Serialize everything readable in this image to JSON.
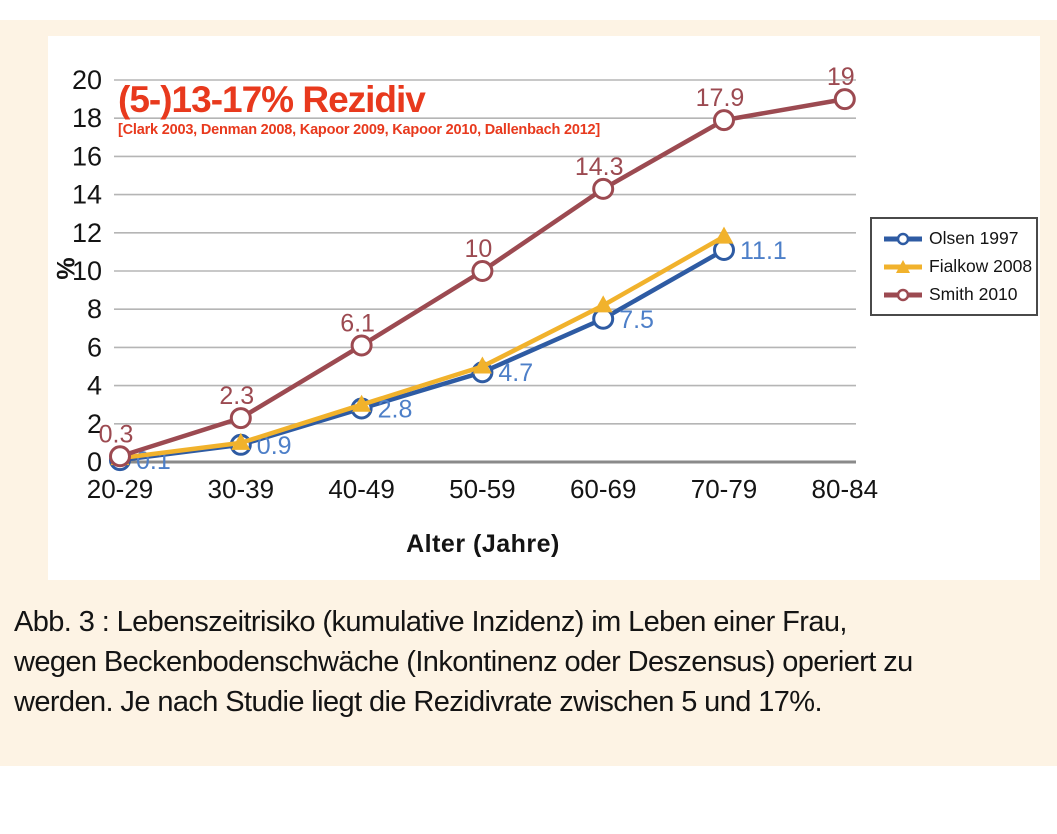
{
  "figure": {
    "annotation_title": "(5-)13-17% Rezidiv",
    "annotation_citation": "[Clark 2003, Denman 2008, Kapoor 2009, Kapoor 2010, Dallenbach 2012]",
    "annotation_color": "#e8391d",
    "background_color": "#fdf3e4",
    "panel_color": "#ffffff"
  },
  "chart_data": {
    "type": "line",
    "title": "",
    "categories": [
      "20-29",
      "30-39",
      "40-49",
      "50-59",
      "60-69",
      "70-79",
      "80-84"
    ],
    "series": [
      {
        "name": "Olsen 1997",
        "color": "#2e5ba3",
        "marker": "circle",
        "values": [
          0.1,
          0.9,
          2.8,
          4.7,
          7.5,
          11.1,
          null
        ],
        "labels": [
          "0.1",
          "0.9",
          "2.8",
          "4.7",
          "7.5",
          "11.1",
          null
        ],
        "label_color": "#4d7fc8",
        "label_side": "right"
      },
      {
        "name": "Fialkow 2008",
        "color": "#f1b22c",
        "marker": "triangle",
        "values": [
          0.2,
          1.0,
          3.0,
          5.0,
          8.2,
          11.8,
          null
        ],
        "labels": [
          null,
          null,
          null,
          null,
          null,
          null,
          null
        ],
        "label_color": "#f1b22c",
        "label_side": "right"
      },
      {
        "name": "Smith 2010",
        "color": "#9c4a51",
        "marker": "circle",
        "values": [
          0.3,
          2.3,
          6.1,
          10,
          14.3,
          17.9,
          19
        ],
        "labels": [
          "0.3",
          "2.3",
          "6.1",
          "10",
          "14.3",
          "17.9",
          "19"
        ],
        "label_color": "#9c4a51",
        "label_side": "above"
      }
    ],
    "xlabel": "Alter (Jahre)",
    "ylabel": "%",
    "ylim": [
      0,
      20
    ],
    "ytick_step": 2,
    "grid": true,
    "gridline_color": "#b5b5b5",
    "baseline_color": "#8a8a8a",
    "axis_text_color": "#141414",
    "legend_position": "right"
  },
  "caption": {
    "line1": "Abb. 3 : Lebenszeitrisiko (kumulative Inzidenz) im Leben einer Frau,",
    "line2": "wegen Beckenbodenschwäche (Inkontinenz oder Deszensus) operiert zu",
    "line3": "werden. Je nach Studie liegt die Rezidivrate zwischen 5 und 17%."
  }
}
